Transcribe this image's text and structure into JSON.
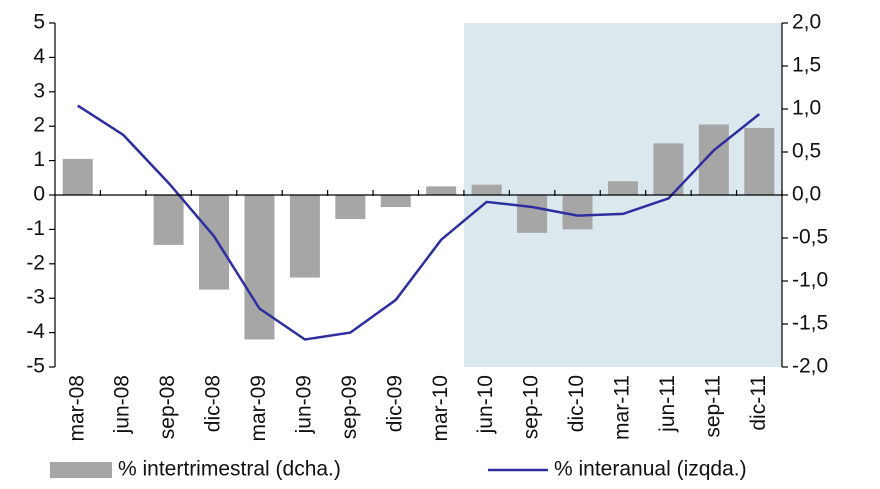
{
  "chart_data": {
    "type": "bar-line",
    "categories": [
      "mar-08",
      "jun-08",
      "sep-08",
      "dic-08",
      "mar-09",
      "jun-09",
      "sep-09",
      "dic-09",
      "mar-10",
      "jun-10",
      "sep-10",
      "dic-10",
      "mar-11",
      "jun-11",
      "sep-11",
      "dic-11"
    ],
    "series": [
      {
        "name": "% intertrimestral (dcha.)",
        "type": "bar",
        "axis": "y2",
        "color": "#a6a6a6",
        "values": [
          0.42,
          0.0,
          -0.58,
          -1.1,
          -1.68,
          -0.96,
          -0.28,
          -0.14,
          0.1,
          0.12,
          -0.44,
          -0.4,
          0.16,
          0.6,
          0.82,
          0.78
        ]
      },
      {
        "name": "% interanual (izqda.)",
        "type": "line",
        "axis": "y",
        "color": "#2e2e9e",
        "values": [
          2.6,
          1.75,
          0.35,
          -1.2,
          -3.3,
          -4.2,
          -4.0,
          -3.05,
          -1.3,
          -0.2,
          -0.35,
          -0.6,
          -0.55,
          -0.1,
          1.3,
          2.35
        ]
      }
    ],
    "ylim": [
      -5,
      5
    ],
    "yticks": [
      5,
      4,
      3,
      2,
      1,
      0,
      -1,
      -2,
      -3,
      -4,
      -5
    ],
    "y2lim": [
      -2,
      2
    ],
    "y2ticks": [
      {
        "value": 2,
        "label": "2,0"
      },
      {
        "value": 1.5,
        "label": "1,5"
      },
      {
        "value": 1,
        "label": "1,0"
      },
      {
        "value": 0.5,
        "label": "0,5"
      },
      {
        "value": 0,
        "label": "0,0"
      },
      {
        "value": -0.5,
        "label": "-0,5"
      },
      {
        "value": -1,
        "label": "-1,0"
      },
      {
        "value": -1.5,
        "label": "-1,5"
      },
      {
        "value": -2,
        "label": "-2,0"
      }
    ],
    "shaded_from_index": 9,
    "shade_color": "#dbe9ef"
  }
}
